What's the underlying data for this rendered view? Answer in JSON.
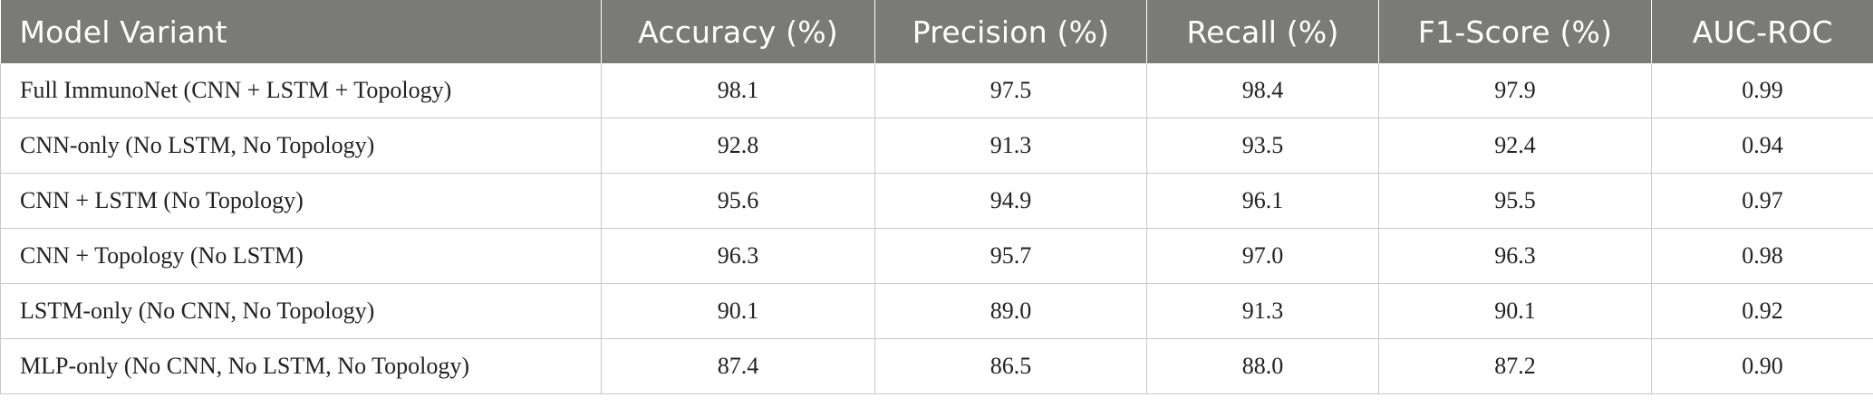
{
  "table": {
    "headers": [
      "Model Variant",
      "Accuracy (%)",
      "Precision (%)",
      "Recall (%)",
      "F1-Score (%)",
      "AUC-ROC"
    ],
    "rows": [
      [
        "Full ImmunoNet (CNN + LSTM + Topology)",
        "98.1",
        "97.5",
        "98.4",
        "97.9",
        "0.99"
      ],
      [
        "CNN-only (No LSTM, No Topology)",
        "92.8",
        "91.3",
        "93.5",
        "92.4",
        "0.94"
      ],
      [
        "CNN + LSTM (No Topology)",
        "95.6",
        "94.9",
        "96.1",
        "95.5",
        "0.97"
      ],
      [
        "CNN + Topology (No LSTM)",
        "96.3",
        "95.7",
        "97.0",
        "96.3",
        "0.98"
      ],
      [
        "LSTM-only (No CNN, No Topology)",
        "90.1",
        "89.0",
        "91.3",
        "90.1",
        "0.92"
      ],
      [
        "MLP-only (No CNN, No LSTM, No Topology)",
        "87.4",
        "86.5",
        "88.0",
        "87.2",
        "0.90"
      ]
    ]
  },
  "colors": {
    "header_background": "#7a7b79",
    "header_text": "#ffffff",
    "grid_lines": "#c9c9c9"
  }
}
